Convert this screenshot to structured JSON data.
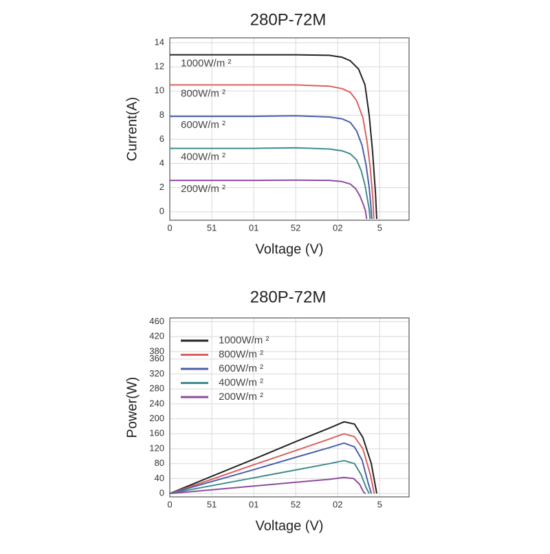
{
  "chart_data": [
    {
      "type": "line",
      "title": "280P-72M",
      "x_label": "Voltage (V)",
      "y_label": "Current(A)",
      "xlim": [
        0,
        57
      ],
      "xticks": [
        0,
        {
          "value": 10,
          "label": "51"
        },
        {
          "value": 20,
          "label": "01"
        },
        {
          "value": 30,
          "label": "52"
        },
        {
          "value": 40,
          "label": "02"
        },
        {
          "value": 50,
          "label": "5"
        }
      ],
      "ylim": [
        -0.7,
        14.4
      ],
      "yticks": [
        0,
        2,
        4,
        6,
        8,
        10,
        12,
        14
      ],
      "grid": true,
      "legend": "inline",
      "series": [
        {
          "name": "1000W/m ²",
          "color": "#222222",
          "x": [
            0,
            10,
            20,
            30,
            38,
            41,
            43,
            45,
            46.5,
            47.5,
            48.3,
            49,
            49.3
          ],
          "values": [
            13.0,
            13.0,
            13.0,
            13.0,
            12.95,
            12.8,
            12.5,
            11.8,
            10.5,
            8,
            5,
            1.5,
            -0.6
          ]
        },
        {
          "name": "800W/m ²",
          "color": "#d9605e",
          "x": [
            0,
            10,
            20,
            30,
            38,
            41,
            43,
            44.5,
            46,
            47,
            47.8,
            48.4,
            48.6
          ],
          "values": [
            10.5,
            10.5,
            10.5,
            10.5,
            10.4,
            10.2,
            9.9,
            9.2,
            7.8,
            5.8,
            3.5,
            1,
            -0.6
          ]
        },
        {
          "name": "600W/m ²",
          "color": "#4a5ea8",
          "x": [
            0,
            10,
            20,
            30,
            38,
            41,
            43,
            44.5,
            45.8,
            46.8,
            47.5,
            47.9,
            48.1
          ],
          "values": [
            7.9,
            7.9,
            7.9,
            7.95,
            7.85,
            7.7,
            7.4,
            6.7,
            5.5,
            3.8,
            2,
            0.5,
            -0.6
          ]
        },
        {
          "name": "400W/m ²",
          "color": "#3d8c8a",
          "x": [
            0,
            10,
            20,
            30,
            38,
            41,
            43,
            44.5,
            45.6,
            46.5,
            47.1,
            47.5,
            47.7
          ],
          "values": [
            5.25,
            5.25,
            5.25,
            5.3,
            5.2,
            5.05,
            4.8,
            4.3,
            3.4,
            2.2,
            1.0,
            0.2,
            -0.6
          ]
        },
        {
          "name": "200W/m ²",
          "color": "#8e4a9e",
          "x": [
            0,
            10,
            20,
            30,
            38,
            41,
            43,
            44.3,
            45.3,
            46.1,
            46.6,
            46.9
          ],
          "values": [
            2.6,
            2.6,
            2.6,
            2.62,
            2.6,
            2.5,
            2.3,
            1.9,
            1.3,
            0.6,
            0.1,
            -0.6
          ]
        }
      ]
    },
    {
      "type": "line",
      "title": "280P-72M",
      "x_label": "Voltage (V)",
      "y_label": "Power(W)",
      "xlim": [
        0,
        57
      ],
      "xticks": [
        0,
        {
          "value": 10,
          "label": "51"
        },
        {
          "value": 20,
          "label": "01"
        },
        {
          "value": 30,
          "label": "52"
        },
        {
          "value": 40,
          "label": "02"
        },
        {
          "value": 50,
          "label": "5"
        }
      ],
      "ylim": [
        -9,
        470
      ],
      "yticks": [
        0,
        40,
        80,
        120,
        160,
        200,
        240,
        280,
        320,
        360,
        380,
        420,
        460
      ],
      "grid": true,
      "legend": "upper left",
      "series": [
        {
          "name": "1000W/m ²",
          "color": "#222222",
          "x": [
            0,
            10,
            20,
            30,
            38,
            41.5,
            44,
            46,
            48,
            49.3
          ],
          "values": [
            0,
            46,
            92,
            139,
            175,
            192,
            186,
            150,
            80,
            0
          ]
        },
        {
          "name": "800W/m ²",
          "color": "#d9605e",
          "x": [
            0,
            10,
            20,
            30,
            38,
            41.5,
            44,
            46,
            47.8,
            48.7
          ],
          "values": [
            0,
            38,
            77,
            115,
            146,
            160,
            152,
            120,
            50,
            0
          ]
        },
        {
          "name": "600W/m ²",
          "color": "#4a5ea8",
          "x": [
            0,
            10,
            20,
            30,
            38,
            41.5,
            44,
            45.8,
            47.2,
            48
          ],
          "values": [
            0,
            32,
            64,
            97,
            123,
            135,
            125,
            90,
            30,
            0
          ]
        },
        {
          "name": "400W/m ²",
          "color": "#3d8c8a",
          "x": [
            0,
            10,
            20,
            30,
            38,
            41.5,
            44,
            45.6,
            46.8,
            47.5
          ],
          "values": [
            0,
            21,
            42,
            63,
            80,
            88,
            80,
            50,
            15,
            0
          ]
        },
        {
          "name": "200W/m ²",
          "color": "#8e4a9e",
          "x": [
            0,
            10,
            20,
            30,
            38,
            41.5,
            43.8,
            45.2,
            46.1,
            46.6
          ],
          "values": [
            0,
            10,
            20,
            30,
            38,
            43,
            40,
            25,
            5,
            0
          ]
        }
      ]
    }
  ]
}
